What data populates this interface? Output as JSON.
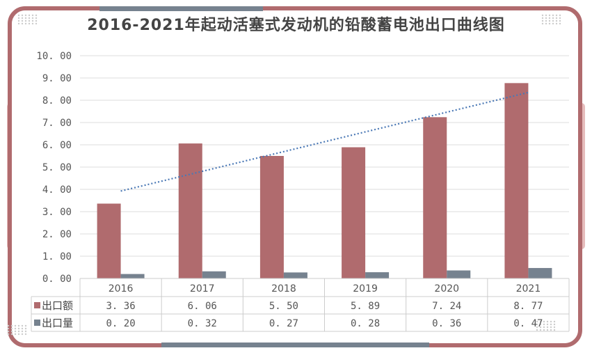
{
  "chart_data": {
    "type": "bar",
    "title": "2016-2021年起动活塞式发动机的铅酸蓄电池出口曲线图",
    "categories": [
      "2016",
      "2017",
      "2018",
      "2019",
      "2020",
      "2021"
    ],
    "series": [
      {
        "name": "出口额",
        "values": [
          3.36,
          6.06,
          5.5,
          5.89,
          7.24,
          8.77
        ],
        "color": "#b06b6e",
        "display": [
          "3. 36",
          "6. 06",
          "5. 50",
          "5. 89",
          "7. 24",
          "8. 77"
        ]
      },
      {
        "name": "出口量",
        "values": [
          0.2,
          0.32,
          0.27,
          0.28,
          0.36,
          0.47
        ],
        "color": "#76828f",
        "display": [
          "0. 20",
          "0. 32",
          "0. 27",
          "0. 28",
          "0. 36",
          "0. 47"
        ]
      }
    ],
    "trendline": {
      "series": "出口额",
      "type": "linear",
      "style": "dotted",
      "color": "#4a78b5"
    },
    "ylim": [
      0,
      10
    ],
    "yticks": [
      "0. 00",
      "1. 00",
      "2. 00",
      "3. 00",
      "4. 00",
      "5. 00",
      "6. 00",
      "7. 00",
      "8. 00",
      "9. 00",
      "10. 00"
    ],
    "grid": true,
    "legend": "data-table",
    "frame_colors": {
      "red": "#b06b6e",
      "gray": "#76828f",
      "pink": "#e6bcbc"
    }
  }
}
